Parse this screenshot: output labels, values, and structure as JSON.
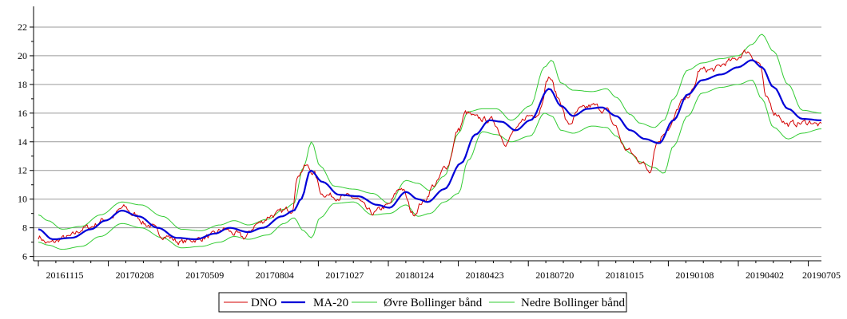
{
  "chart_data": {
    "type": "line",
    "title": "",
    "xlabel": "",
    "ylabel": "",
    "x_ticks": [
      "20161115",
      "20170208",
      "20170509",
      "20170804",
      "20171027",
      "20180124",
      "20180423",
      "20180720",
      "20181015",
      "20190108",
      "20190402",
      "20190705"
    ],
    "y_ticks": [
      "6",
      "8",
      "10",
      "12",
      "14",
      "16",
      "18",
      "20",
      "22"
    ],
    "ylim": [
      5.7,
      23.0
    ],
    "grid": true,
    "legend_position": "bottom-center",
    "anchors": {
      "price": [
        [
          0,
          7.4
        ],
        [
          0.2,
          6.9
        ],
        [
          0.6,
          7.3
        ],
        [
          1.0,
          8.0
        ],
        [
          1.5,
          8.7
        ],
        [
          1.8,
          9.4
        ],
        [
          2.0,
          8.9
        ],
        [
          2.3,
          8.2
        ],
        [
          2.6,
          7.5
        ],
        [
          3.0,
          7.0
        ],
        [
          3.3,
          7.2
        ],
        [
          3.6,
          7.4
        ],
        [
          3.9,
          7.9
        ],
        [
          4.1,
          7.6
        ],
        [
          4.3,
          7.3
        ],
        [
          4.6,
          8.3
        ],
        [
          4.9,
          8.9
        ],
        [
          5.3,
          9.3
        ],
        [
          5.45,
          11.8
        ],
        [
          5.6,
          12.3
        ],
        [
          5.75,
          11.9
        ],
        [
          5.95,
          10.4
        ],
        [
          6.2,
          10.2
        ],
        [
          6.6,
          10.1
        ],
        [
          7.0,
          9.0
        ],
        [
          7.3,
          9.5
        ],
        [
          7.6,
          10.8
        ],
        [
          7.85,
          9.0
        ],
        [
          8.05,
          9.8
        ],
        [
          8.3,
          11.0
        ],
        [
          8.55,
          12.3
        ],
        [
          8.8,
          14.8
        ],
        [
          8.95,
          16.0
        ],
        [
          9.2,
          15.6
        ],
        [
          9.5,
          15.5
        ],
        [
          9.8,
          14.0
        ],
        [
          10.0,
          14.8
        ],
        [
          10.25,
          15.8
        ],
        [
          10.45,
          16.0
        ],
        [
          10.7,
          18.5
        ],
        [
          10.9,
          17.0
        ],
        [
          11.1,
          15.2
        ],
        [
          11.35,
          16.2
        ],
        [
          11.6,
          16.5
        ],
        [
          11.9,
          16.2
        ],
        [
          12.05,
          15.2
        ],
        [
          12.3,
          13.5
        ],
        [
          12.6,
          12.7
        ],
        [
          12.8,
          12.0
        ],
        [
          12.95,
          14.0
        ],
        [
          13.2,
          15.0
        ],
        [
          13.5,
          16.8
        ],
        [
          13.7,
          17.5
        ],
        [
          13.85,
          19.0
        ],
        [
          14.1,
          19.0
        ],
        [
          14.5,
          19.6
        ],
        [
          14.85,
          20.3
        ],
        [
          15.1,
          19.5
        ],
        [
          15.25,
          16.9
        ],
        [
          15.45,
          16.0
        ],
        [
          15.7,
          15.2
        ],
        [
          15.95,
          15.3
        ],
        [
          16.2,
          15.4
        ],
        [
          16.3,
          15.2
        ],
        [
          16.4,
          15.1
        ]
      ],
      "ma20": [
        [
          0,
          7.9
        ],
        [
          0.3,
          7.2
        ],
        [
          0.7,
          7.3
        ],
        [
          1.1,
          7.9
        ],
        [
          1.4,
          8.5
        ],
        [
          1.75,
          9.2
        ],
        [
          2.1,
          8.8
        ],
        [
          2.5,
          8.0
        ],
        [
          2.9,
          7.3
        ],
        [
          3.3,
          7.2
        ],
        [
          3.7,
          7.6
        ],
        [
          4.0,
          8.0
        ],
        [
          4.4,
          7.7
        ],
        [
          4.7,
          8.0
        ],
        [
          5.1,
          8.8
        ],
        [
          5.35,
          9.2
        ],
        [
          5.5,
          10.0
        ],
        [
          5.7,
          12.0
        ],
        [
          5.95,
          11.2
        ],
        [
          6.3,
          10.3
        ],
        [
          6.7,
          10.2
        ],
        [
          7.1,
          9.6
        ],
        [
          7.35,
          9.4
        ],
        [
          7.7,
          10.5
        ],
        [
          7.95,
          10.0
        ],
        [
          8.15,
          9.8
        ],
        [
          8.5,
          10.7
        ],
        [
          8.85,
          12.5
        ],
        [
          9.15,
          14.5
        ],
        [
          9.45,
          15.5
        ],
        [
          9.7,
          15.4
        ],
        [
          10.0,
          14.8
        ],
        [
          10.3,
          15.5
        ],
        [
          10.7,
          17.7
        ],
        [
          10.95,
          16.5
        ],
        [
          11.2,
          15.8
        ],
        [
          11.5,
          16.3
        ],
        [
          11.8,
          16.4
        ],
        [
          12.1,
          15.8
        ],
        [
          12.4,
          14.8
        ],
        [
          12.7,
          14.2
        ],
        [
          13.0,
          13.9
        ],
        [
          13.3,
          15.5
        ],
        [
          13.6,
          17.3
        ],
        [
          13.9,
          18.3
        ],
        [
          14.3,
          18.7
        ],
        [
          14.65,
          19.2
        ],
        [
          14.95,
          19.7
        ],
        [
          15.15,
          19.2
        ],
        [
          15.4,
          17.8
        ],
        [
          15.7,
          16.3
        ],
        [
          16.0,
          15.6
        ],
        [
          16.4,
          15.5
        ]
      ],
      "bb_upper": [
        [
          0,
          8.9
        ],
        [
          0.2,
          8.5
        ],
        [
          0.5,
          7.9
        ],
        [
          0.9,
          8.1
        ],
        [
          1.3,
          8.9
        ],
        [
          1.75,
          9.8
        ],
        [
          2.15,
          9.6
        ],
        [
          2.6,
          8.8
        ],
        [
          3.0,
          7.9
        ],
        [
          3.4,
          7.8
        ],
        [
          3.8,
          8.2
        ],
        [
          4.1,
          8.5
        ],
        [
          4.4,
          8.2
        ],
        [
          4.8,
          8.6
        ],
        [
          5.15,
          9.3
        ],
        [
          5.35,
          9.7
        ],
        [
          5.55,
          12.2
        ],
        [
          5.72,
          14.0
        ],
        [
          5.9,
          12.3
        ],
        [
          6.2,
          10.9
        ],
        [
          6.6,
          10.7
        ],
        [
          7.0,
          10.4
        ],
        [
          7.35,
          9.7
        ],
        [
          7.7,
          11.3
        ],
        [
          7.95,
          11.1
        ],
        [
          8.2,
          10.6
        ],
        [
          8.5,
          11.6
        ],
        [
          8.8,
          14.6
        ],
        [
          9.0,
          16.1
        ],
        [
          9.3,
          16.3
        ],
        [
          9.6,
          16.3
        ],
        [
          9.9,
          15.5
        ],
        [
          10.3,
          16.5
        ],
        [
          10.6,
          19.2
        ],
        [
          10.75,
          19.7
        ],
        [
          10.95,
          18.1
        ],
        [
          11.2,
          17.6
        ],
        [
          11.6,
          17.5
        ],
        [
          11.9,
          17.7
        ],
        [
          12.1,
          17.1
        ],
        [
          12.4,
          15.9
        ],
        [
          12.6,
          15.3
        ],
        [
          12.9,
          15.0
        ],
        [
          13.1,
          15.5
        ],
        [
          13.3,
          17.0
        ],
        [
          13.6,
          19.0
        ],
        [
          13.9,
          19.5
        ],
        [
          14.3,
          19.8
        ],
        [
          14.65,
          20.0
        ],
        [
          14.95,
          20.8
        ],
        [
          15.15,
          21.5
        ],
        [
          15.4,
          20.3
        ],
        [
          15.7,
          18.0
        ],
        [
          16.0,
          16.2
        ],
        [
          16.4,
          16.0
        ]
      ],
      "bb_lower": [
        [
          0,
          7.0
        ],
        [
          0.2,
          6.8
        ],
        [
          0.5,
          6.5
        ],
        [
          0.9,
          6.7
        ],
        [
          1.3,
          7.4
        ],
        [
          1.75,
          8.3
        ],
        [
          2.15,
          8.0
        ],
        [
          2.6,
          7.3
        ],
        [
          3.0,
          6.6
        ],
        [
          3.4,
          6.7
        ],
        [
          3.8,
          7.0
        ],
        [
          4.1,
          7.4
        ],
        [
          4.4,
          7.2
        ],
        [
          4.8,
          7.5
        ],
        [
          5.15,
          8.3
        ],
        [
          5.35,
          8.7
        ],
        [
          5.55,
          7.8
        ],
        [
          5.72,
          7.3
        ],
        [
          5.9,
          8.7
        ],
        [
          6.2,
          9.7
        ],
        [
          6.6,
          9.8
        ],
        [
          7.0,
          8.9
        ],
        [
          7.35,
          9.0
        ],
        [
          7.7,
          9.6
        ],
        [
          7.95,
          8.8
        ],
        [
          8.2,
          9.0
        ],
        [
          8.5,
          9.8
        ],
        [
          8.8,
          10.4
        ],
        [
          9.0,
          12.7
        ],
        [
          9.3,
          14.7
        ],
        [
          9.6,
          14.5
        ],
        [
          9.9,
          14.0
        ],
        [
          10.3,
          14.4
        ],
        [
          10.6,
          16.0
        ],
        [
          10.75,
          15.8
        ],
        [
          10.95,
          14.8
        ],
        [
          11.2,
          14.6
        ],
        [
          11.6,
          15.1
        ],
        [
          11.9,
          15.0
        ],
        [
          12.1,
          14.4
        ],
        [
          12.4,
          13.2
        ],
        [
          12.6,
          12.6
        ],
        [
          12.9,
          12.2
        ],
        [
          13.1,
          11.8
        ],
        [
          13.3,
          13.7
        ],
        [
          13.6,
          15.8
        ],
        [
          13.9,
          17.4
        ],
        [
          14.3,
          17.8
        ],
        [
          14.65,
          18.0
        ],
        [
          14.95,
          18.3
        ],
        [
          15.15,
          17.0
        ],
        [
          15.4,
          15.0
        ],
        [
          15.7,
          14.2
        ],
        [
          16.0,
          14.6
        ],
        [
          16.4,
          14.9
        ]
      ]
    },
    "series": [
      {
        "key": "price",
        "name": "DNO",
        "color": "#d40000"
      },
      {
        "key": "ma20",
        "name": "MA-20",
        "color": "#0000d8"
      },
      {
        "key": "bb_upper",
        "name": "Øvre Bollinger bånd",
        "color": "#33cc33"
      },
      {
        "key": "bb_lower",
        "name": "Nedre Bollinger bånd",
        "color": "#33cc33"
      }
    ]
  }
}
